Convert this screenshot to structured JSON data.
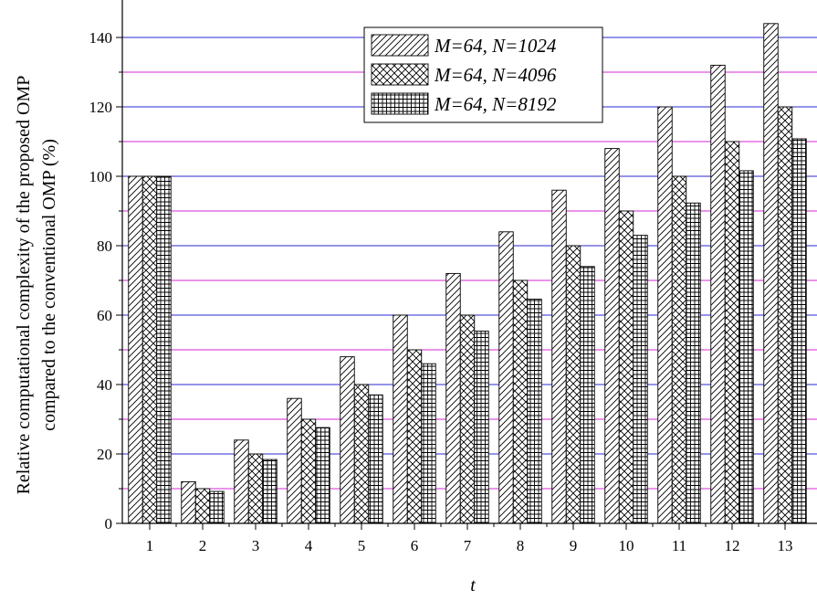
{
  "chart_data": {
    "type": "bar",
    "categories": [
      "1",
      "2",
      "3",
      "4",
      "5",
      "6",
      "7",
      "8",
      "9",
      "10",
      "11",
      "12",
      "13"
    ],
    "series": [
      {
        "name": "M=64, N=1024",
        "pattern": "diagonal-hatch",
        "values": [
          100,
          12,
          24,
          36,
          48,
          60,
          72,
          84,
          96,
          108,
          120,
          132,
          144
        ]
      },
      {
        "name": "M=64, N=4096",
        "pattern": "cross-hatch",
        "values": [
          100,
          10,
          20,
          30,
          40,
          50,
          60,
          70,
          80,
          90,
          100,
          110,
          120
        ]
      },
      {
        "name": "M=64, N=8192",
        "pattern": "grid",
        "values": [
          100,
          9.2,
          18.4,
          27.6,
          37,
          46,
          55.4,
          64.6,
          74,
          83,
          92.3,
          101.6,
          110.8
        ]
      }
    ],
    "xlabel": "t",
    "ylabel_line1": "Relative computational complexity of the proposed OMP",
    "ylabel_line2": "compared to the conventional OMP (%)",
    "ylim": [
      0,
      150
    ],
    "yticks": [
      0,
      20,
      40,
      60,
      80,
      100,
      120,
      140
    ],
    "gridlines": {
      "major": {
        "values": [
          20,
          40,
          60,
          80,
          100,
          120,
          140
        ],
        "color": "#2a2ad0"
      },
      "minor": {
        "values": [
          10,
          30,
          50,
          70,
          90,
          110,
          130
        ],
        "color": "#d62ad6"
      }
    },
    "legend": "top-center"
  }
}
